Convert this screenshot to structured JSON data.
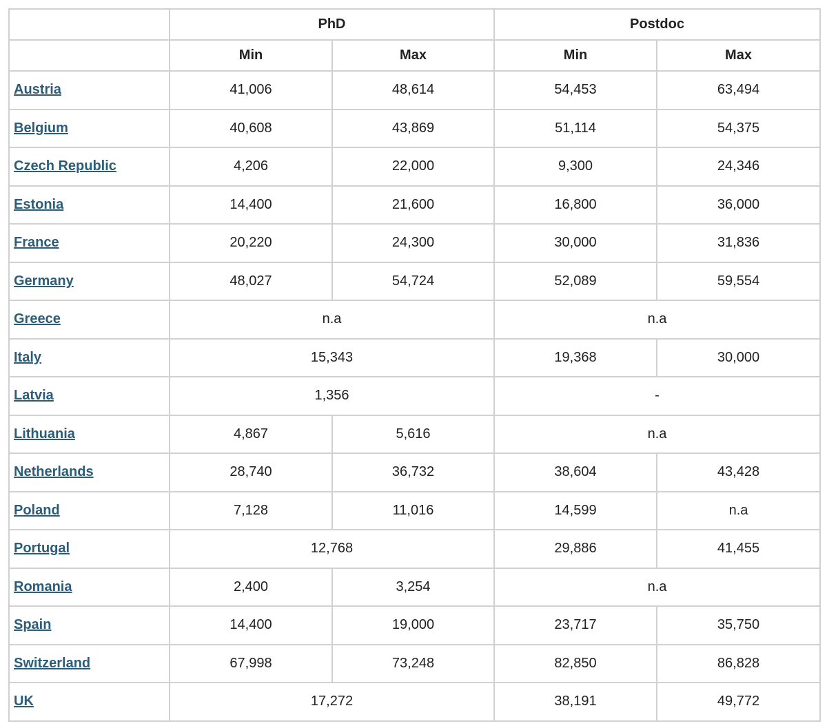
{
  "table": {
    "groups": [
      "PhD",
      "Postdoc"
    ],
    "subheaders": [
      "Min",
      "Max",
      "Min",
      "Max"
    ],
    "rows": [
      {
        "country": "Austria",
        "phd": [
          "41,006",
          "48,614"
        ],
        "postdoc": [
          "54,453",
          "63,494"
        ]
      },
      {
        "country": "Belgium",
        "phd": [
          "40,608",
          "43,869"
        ],
        "postdoc": [
          "51,114",
          "54,375"
        ]
      },
      {
        "country": "Czech Republic",
        "phd": [
          "4,206",
          "22,000"
        ],
        "postdoc": [
          "9,300",
          "24,346"
        ]
      },
      {
        "country": "Estonia",
        "phd": [
          "14,400",
          "21,600"
        ],
        "postdoc": [
          "16,800",
          "36,000"
        ]
      },
      {
        "country": "France",
        "phd": [
          "20,220",
          "24,300"
        ],
        "postdoc": [
          "30,000",
          "31,836"
        ]
      },
      {
        "country": "Germany",
        "phd": [
          "48,027",
          "54,724"
        ],
        "postdoc": [
          "52,089",
          "59,554"
        ]
      },
      {
        "country": "Greece",
        "phd": [
          "n.a"
        ],
        "postdoc": [
          "n.a"
        ]
      },
      {
        "country": "Italy",
        "phd": [
          "15,343"
        ],
        "postdoc": [
          "19,368",
          "30,000"
        ]
      },
      {
        "country": "Latvia",
        "phd": [
          "1,356"
        ],
        "postdoc": [
          "-"
        ]
      },
      {
        "country": "Lithuania",
        "phd": [
          "4,867",
          "5,616"
        ],
        "postdoc": [
          "n.a"
        ]
      },
      {
        "country": "Netherlands",
        "phd": [
          "28,740",
          "36,732"
        ],
        "postdoc": [
          "38,604",
          "43,428"
        ]
      },
      {
        "country": "Poland",
        "phd": [
          "7,128",
          "11,016"
        ],
        "postdoc": [
          "14,599",
          "n.a"
        ]
      },
      {
        "country": "Portugal",
        "phd": [
          "12,768"
        ],
        "postdoc": [
          "29,886",
          "41,455"
        ]
      },
      {
        "country": "Romania",
        "phd": [
          "2,400",
          "3,254"
        ],
        "postdoc": [
          "n.a"
        ]
      },
      {
        "country": "Spain",
        "phd": [
          "14,400",
          "19,000"
        ],
        "postdoc": [
          "23,717",
          "35,750"
        ]
      },
      {
        "country": "Switzerland",
        "phd": [
          "67,998",
          "73,248"
        ],
        "postdoc": [
          "82,850",
          "86,828"
        ]
      },
      {
        "country": "UK",
        "phd": [
          "17,272"
        ],
        "postdoc": [
          "38,191",
          "49,772"
        ]
      }
    ]
  }
}
